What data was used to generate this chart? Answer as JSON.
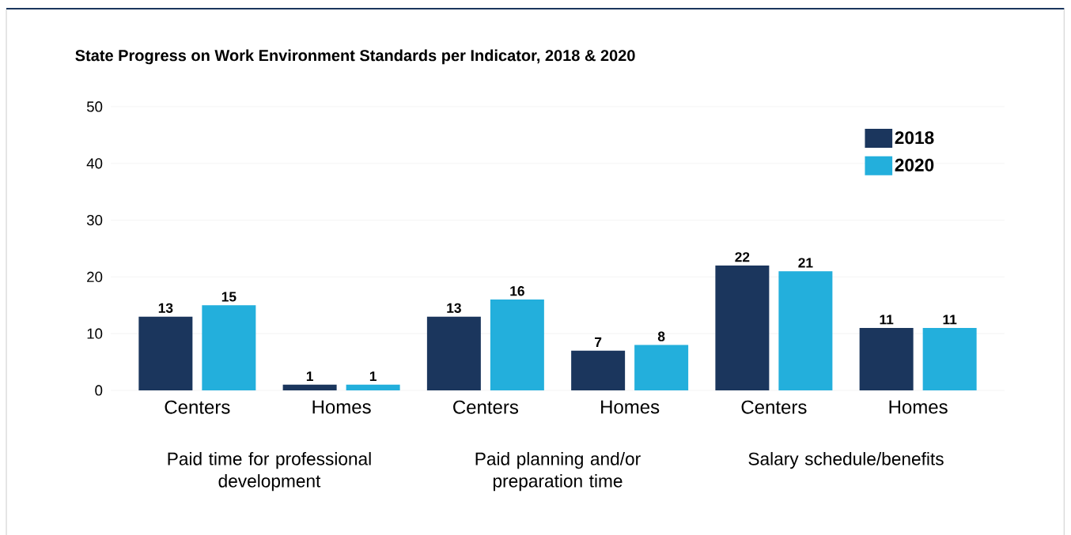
{
  "chart_data": {
    "type": "bar",
    "title": "State Progress on Work Environment Standards per Indicator, 2018 & 2020",
    "categories": [
      "Centers",
      "Homes",
      "Centers",
      "Homes",
      "Centers",
      "Homes"
    ],
    "series": [
      {
        "name": "2018",
        "color": "#1b365d",
        "values": [
          13,
          1,
          13,
          7,
          22,
          11
        ]
      },
      {
        "name": "2020",
        "color": "#23afdc",
        "values": [
          15,
          1,
          16,
          8,
          21,
          11
        ]
      }
    ],
    "annotations": [
      "Paid time for professional development",
      "Paid planning and/or preparation time",
      "Salary schedule/benefits"
    ],
    "ylim": [
      0,
      50
    ],
    "yticks": [
      0,
      10,
      20,
      30,
      40,
      50
    ],
    "grid": "y",
    "legend": "top right",
    "data_labels": true
  }
}
